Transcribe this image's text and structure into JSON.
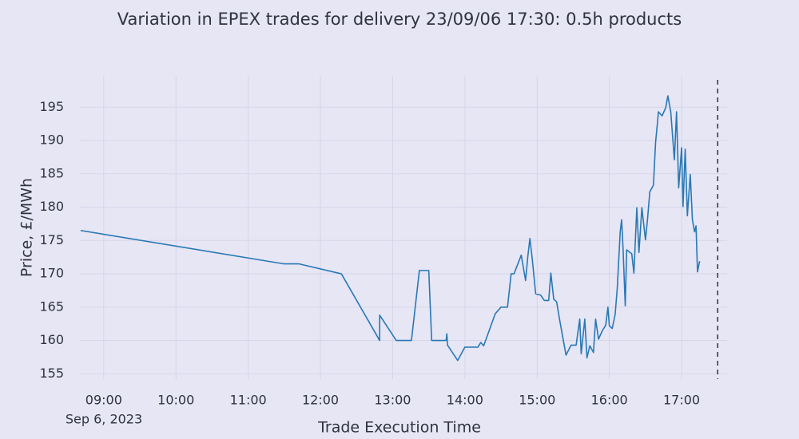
{
  "chart_data": {
    "type": "line",
    "title": "Variation in EPEX trades for delivery 23/09/06 17:30: 0.5h products",
    "xlabel": "Trade Execution Time",
    "ylabel": "Price, £/MWh",
    "date_label": "Sep 6, 2023",
    "xlim": [
      8.67,
      17.63
    ],
    "ylim": [
      154.2,
      199.7
    ],
    "xticks": [
      {
        "value": 9,
        "label": "09:00"
      },
      {
        "value": 10,
        "label": "10:00"
      },
      {
        "value": 11,
        "label": "11:00"
      },
      {
        "value": 12,
        "label": "12:00"
      },
      {
        "value": 13,
        "label": "13:00"
      },
      {
        "value": 14,
        "label": "14:00"
      },
      {
        "value": 15,
        "label": "15:00"
      },
      {
        "value": 16,
        "label": "16:00"
      },
      {
        "value": 17,
        "label": "17:00"
      }
    ],
    "yticks": [
      155,
      160,
      165,
      170,
      175,
      180,
      185,
      190,
      195
    ],
    "grid": true,
    "vline": 17.5,
    "series": [
      {
        "color": "#2a78b4",
        "x": [
          8.68,
          11.49,
          11.7,
          12.29,
          12.82,
          12.82,
          13.05,
          13.26,
          13.37,
          13.5,
          13.54,
          13.74,
          13.75,
          13.76,
          13.9,
          14.0,
          14.18,
          14.22,
          14.26,
          14.42,
          14.5,
          14.59,
          14.64,
          14.68,
          14.78,
          14.84,
          14.87,
          14.9,
          14.93,
          14.98,
          15.05,
          15.1,
          15.16,
          15.19,
          15.23,
          15.27,
          15.31,
          15.4,
          15.47,
          15.54,
          15.59,
          15.61,
          15.66,
          15.69,
          15.73,
          15.78,
          15.81,
          15.85,
          15.9,
          15.95,
          15.98,
          16.0,
          16.04,
          16.08,
          16.11,
          16.15,
          16.17,
          16.19,
          16.22,
          16.24,
          16.31,
          16.34,
          16.38,
          16.41,
          16.45,
          16.5,
          16.53,
          16.56,
          16.61,
          16.64,
          16.68,
          16.73,
          16.78,
          16.81,
          16.85,
          16.9,
          16.93,
          16.96,
          17.0,
          17.02,
          17.05,
          17.08,
          17.12,
          17.15,
          17.18,
          17.2,
          17.22,
          17.25
        ],
        "values": [
          176.5,
          171.5,
          171.5,
          170,
          160,
          163.8,
          160,
          160,
          170.5,
          170.5,
          160,
          160,
          161,
          159.3,
          157,
          159,
          159,
          159.7,
          159.2,
          164,
          165,
          165,
          170,
          170,
          172.8,
          169,
          172.5,
          175.3,
          172.5,
          167,
          166.8,
          166,
          166,
          170.1,
          166.2,
          165.8,
          163.2,
          157.8,
          159.3,
          159.3,
          163.2,
          158,
          163.2,
          157.4,
          159.2,
          158.2,
          163.2,
          160.2,
          161.4,
          162.3,
          165,
          162.2,
          161.8,
          163.9,
          167.9,
          176.3,
          178.1,
          173.7,
          165.2,
          173.6,
          173,
          170.1,
          179.9,
          173.2,
          179.9,
          175.1,
          178.4,
          182.3,
          183.3,
          189.7,
          194.3,
          193.7,
          194.9,
          196.7,
          194.3,
          187.1,
          194.3,
          182.9,
          188.9,
          180.1,
          188.7,
          178.7,
          184.9,
          178.1,
          176.3,
          177.2,
          170.3,
          171.9
        ]
      }
    ]
  }
}
